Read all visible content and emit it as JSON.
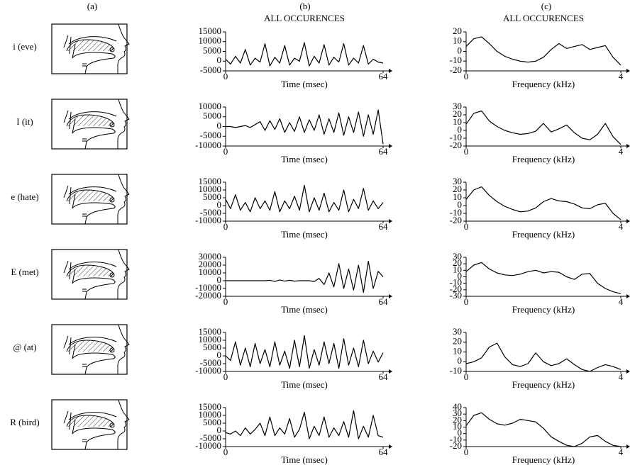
{
  "column_labels": [
    "(a)",
    "(b)",
    "(c)"
  ],
  "rows": [
    "i (eve)",
    "I (it)",
    "e (hate)",
    "E (met)",
    "@ (at)",
    "R (bird)"
  ],
  "chart_data": [
    {
      "type": "line",
      "title": "ALL OCCURENCES",
      "xlabel": "Time (msec)",
      "color": "#000000",
      "x": [
        0,
        2,
        4,
        6,
        8,
        10,
        12,
        14,
        16,
        18,
        20,
        22,
        24,
        26,
        28,
        30,
        32,
        34,
        36,
        38,
        40,
        42,
        44,
        46,
        48,
        50,
        52,
        54,
        56,
        58,
        60,
        62,
        64
      ],
      "values": [
        1000,
        -1500,
        2500,
        -1000,
        6000,
        -2000,
        1500,
        -500,
        9000,
        -2500,
        2000,
        -1000,
        8000,
        -2000,
        1500,
        0,
        9500,
        -2500,
        2500,
        -1000,
        8500,
        -2000,
        2000,
        -500,
        9000,
        -2000,
        1500,
        -1000,
        8000,
        -1500,
        1000,
        -500,
        -1000
      ],
      "xlim": [
        0,
        64
      ],
      "xticks": [
        0,
        64
      ],
      "ylim": [
        -5000,
        15000
      ],
      "yticks": [
        -5000,
        0,
        5000,
        10000,
        15000
      ]
    },
    {
      "type": "line",
      "title": "ALL OCCURENCES",
      "xlabel": "Frequency (kHz)",
      "color": "#000000",
      "x": [
        0,
        0.2,
        0.4,
        0.6,
        0.8,
        1,
        1.2,
        1.4,
        1.6,
        1.8,
        2,
        2.2,
        2.4,
        2.6,
        2.8,
        3,
        3.2,
        3.4,
        3.6,
        3.8,
        4
      ],
      "values": [
        5,
        13,
        15,
        8,
        0,
        -5,
        -8,
        -10,
        -11,
        -10,
        -6,
        2,
        8,
        3,
        5,
        7,
        2,
        4,
        6,
        -6,
        -14
      ],
      "xlim": [
        0,
        4
      ],
      "xticks": [
        0,
        4
      ],
      "ylim": [
        -20,
        20
      ],
      "yticks": [
        -20,
        -10,
        0,
        10,
        20
      ]
    },
    {
      "type": "line",
      "xlabel": "Time (msec)",
      "color": "#000000",
      "x": [
        0,
        2,
        4,
        6,
        8,
        10,
        12,
        14,
        16,
        18,
        20,
        22,
        24,
        26,
        28,
        30,
        32,
        34,
        36,
        38,
        40,
        42,
        44,
        46,
        48,
        50,
        52,
        54,
        56,
        58,
        60,
        62,
        64
      ],
      "values": [
        0,
        0,
        -500,
        0,
        500,
        -500,
        1000,
        2500,
        -2000,
        3000,
        -1500,
        4000,
        -3000,
        2000,
        -2500,
        5000,
        -3000,
        3500,
        -2000,
        6000,
        -4000,
        4000,
        -3000,
        7000,
        -4500,
        5000,
        -3000,
        7500,
        -5000,
        6000,
        -4000,
        8500,
        -9000
      ],
      "xlim": [
        0,
        64
      ],
      "xticks": [
        0,
        64
      ],
      "ylim": [
        -10000,
        10000
      ],
      "yticks": [
        -10000,
        -5000,
        0,
        5000,
        10000
      ]
    },
    {
      "type": "line",
      "xlabel": "Frequency (kHz)",
      "color": "#000000",
      "x": [
        0,
        0.2,
        0.4,
        0.6,
        0.8,
        1,
        1.2,
        1.4,
        1.6,
        1.8,
        2,
        2.2,
        2.4,
        2.6,
        2.8,
        3,
        3.2,
        3.4,
        3.6,
        3.8,
        4
      ],
      "values": [
        8,
        22,
        25,
        12,
        5,
        0,
        -3,
        -5,
        -4,
        -1,
        9,
        -2,
        2,
        7,
        -3,
        -10,
        -12,
        -5,
        9,
        -8,
        -18
      ],
      "xlim": [
        0,
        4
      ],
      "xticks": [
        0,
        4
      ],
      "ylim": [
        -20,
        30
      ],
      "yticks": [
        -20,
        -10,
        0,
        10,
        20,
        30
      ]
    },
    {
      "type": "line",
      "xlabel": "Time (msec)",
      "color": "#000000",
      "x": [
        0,
        2,
        4,
        6,
        8,
        10,
        12,
        14,
        16,
        18,
        20,
        22,
        24,
        26,
        28,
        30,
        32,
        34,
        36,
        38,
        40,
        42,
        44,
        46,
        48,
        50,
        52,
        54,
        56,
        58,
        60,
        62,
        64
      ],
      "values": [
        4000,
        -2000,
        7000,
        -3000,
        2000,
        -4000,
        5000,
        -2000,
        3000,
        -3000,
        9000,
        -4000,
        3000,
        -2000,
        6000,
        -3000,
        13000,
        -4000,
        5000,
        -3000,
        8000,
        -4000,
        2000,
        -3000,
        10000,
        -4000,
        4000,
        -2000,
        11000,
        -3000,
        3000,
        -2000,
        2000
      ],
      "xlim": [
        0,
        64
      ],
      "xticks": [
        0,
        64
      ],
      "ylim": [
        -10000,
        15000
      ],
      "yticks": [
        -10000,
        -5000,
        0,
        5000,
        10000,
        15000
      ]
    },
    {
      "type": "line",
      "xlabel": "Frequency (kHz)",
      "color": "#000000",
      "x": [
        0,
        0.2,
        0.4,
        0.6,
        0.8,
        1,
        1.2,
        1.4,
        1.6,
        1.8,
        2,
        2.2,
        2.4,
        2.6,
        2.8,
        3,
        3.2,
        3.4,
        3.6,
        3.8,
        4
      ],
      "values": [
        8,
        20,
        24,
        13,
        5,
        -1,
        -5,
        -8,
        -7,
        -3,
        5,
        9,
        6,
        5,
        2,
        -3,
        -4,
        1,
        3,
        -10,
        -18
      ],
      "xlim": [
        0,
        4
      ],
      "xticks": [
        0,
        4
      ],
      "ylim": [
        -20,
        30
      ],
      "yticks": [
        -20,
        -10,
        0,
        10,
        20,
        30
      ]
    },
    {
      "type": "line",
      "xlabel": "Time (msec)",
      "color": "#000000",
      "x": [
        0,
        2,
        4,
        6,
        8,
        10,
        12,
        14,
        16,
        18,
        20,
        22,
        24,
        26,
        28,
        30,
        32,
        34,
        36,
        38,
        40,
        42,
        44,
        46,
        48,
        50,
        52,
        54,
        56,
        58,
        60,
        62,
        64
      ],
      "values": [
        0,
        0,
        0,
        0,
        0,
        0,
        0,
        0,
        0,
        500,
        -1000,
        1000,
        -500,
        500,
        -500,
        0,
        0,
        0,
        -1000,
        3000,
        -5000,
        10000,
        -8000,
        22000,
        -10000,
        15000,
        -12000,
        20000,
        -15000,
        25000,
        -10000,
        12000,
        5000
      ],
      "xlim": [
        0,
        64
      ],
      "xticks": [
        0,
        64
      ],
      "ylim": [
        -20000,
        30000
      ],
      "yticks": [
        -20000,
        -10000,
        0,
        10000,
        20000,
        30000
      ]
    },
    {
      "type": "line",
      "xlabel": "Frequency (kHz)",
      "color": "#000000",
      "x": [
        0,
        0.2,
        0.4,
        0.6,
        0.8,
        1,
        1.2,
        1.4,
        1.6,
        1.8,
        2,
        2.2,
        2.4,
        2.6,
        2.8,
        3,
        3.2,
        3.4,
        3.6,
        3.8,
        4
      ],
      "values": [
        8,
        18,
        22,
        12,
        6,
        3,
        2,
        4,
        8,
        10,
        6,
        8,
        7,
        0,
        -4,
        4,
        5,
        -10,
        -18,
        -23,
        -26
      ],
      "xlim": [
        0,
        4
      ],
      "xticks": [
        0,
        4
      ],
      "ylim": [
        -30,
        30
      ],
      "yticks": [
        -30,
        -20,
        -10,
        0,
        10,
        20,
        30
      ]
    },
    {
      "type": "line",
      "xlabel": "Time (msec)",
      "color": "#000000",
      "x": [
        0,
        2,
        4,
        6,
        8,
        10,
        12,
        14,
        16,
        18,
        20,
        22,
        24,
        26,
        28,
        30,
        32,
        34,
        36,
        38,
        40,
        42,
        44,
        46,
        48,
        50,
        52,
        54,
        56,
        58,
        60,
        62,
        64
      ],
      "values": [
        0,
        -3000,
        9000,
        -6000,
        5000,
        -7000,
        8000,
        -5000,
        4000,
        -7000,
        9000,
        -6000,
        3000,
        -8000,
        10000,
        -7000,
        13000,
        -8000,
        4000,
        -6000,
        9000,
        -5000,
        8000,
        -8000,
        11000,
        -6000,
        5000,
        -7000,
        10000,
        -5000,
        3000,
        -4000,
        2000
      ],
      "xlim": [
        0,
        64
      ],
      "xticks": [
        0,
        64
      ],
      "ylim": [
        -10000,
        15000
      ],
      "yticks": [
        -10000,
        -5000,
        0,
        5000,
        10000,
        15000
      ]
    },
    {
      "type": "line",
      "xlabel": "Frequency (kHz)",
      "color": "#000000",
      "x": [
        0,
        0.2,
        0.4,
        0.6,
        0.8,
        1,
        1.2,
        1.4,
        1.6,
        1.8,
        2,
        2.2,
        2.4,
        2.6,
        2.8,
        3,
        3.2,
        3.4,
        3.6,
        3.8,
        4
      ],
      "values": [
        -2,
        0,
        4,
        15,
        19,
        5,
        -3,
        -5,
        -2,
        9,
        0,
        -4,
        -2,
        3,
        -3,
        -8,
        -10,
        -6,
        -3,
        -5,
        -8
      ],
      "xlim": [
        0,
        4
      ],
      "xticks": [
        0,
        4
      ],
      "ylim": [
        -10,
        30
      ],
      "yticks": [
        -10,
        0,
        10,
        20,
        30
      ]
    },
    {
      "type": "line",
      "xlabel": "Time (msec)",
      "color": "#000000",
      "x": [
        0,
        2,
        4,
        6,
        8,
        10,
        12,
        14,
        16,
        18,
        20,
        22,
        24,
        26,
        28,
        30,
        32,
        34,
        36,
        38,
        40,
        42,
        44,
        46,
        48,
        50,
        52,
        54,
        56,
        58,
        60,
        62,
        64
      ],
      "values": [
        -1000,
        -2000,
        0,
        -3000,
        2000,
        -2000,
        1000,
        5000,
        -3000,
        9000,
        -3000,
        2000,
        -2000,
        8000,
        -4000,
        1000,
        12000,
        -5000,
        3000,
        -3000,
        9000,
        -4000,
        2000,
        -3000,
        6000,
        -4000,
        13000,
        -5000,
        3000,
        -4000,
        10000,
        -3000,
        -4000
      ],
      "xlim": [
        0,
        64
      ],
      "xticks": [
        0,
        64
      ],
      "ylim": [
        -10000,
        15000
      ],
      "yticks": [
        -10000,
        -5000,
        0,
        5000,
        10000,
        15000
      ]
    },
    {
      "type": "line",
      "xlabel": "Frequency (kHz)",
      "color": "#000000",
      "x": [
        0,
        0.2,
        0.4,
        0.6,
        0.8,
        1,
        1.2,
        1.4,
        1.6,
        1.8,
        2,
        2.2,
        2.4,
        2.6,
        2.8,
        3,
        3.2,
        3.4,
        3.6,
        3.8,
        4
      ],
      "values": [
        12,
        28,
        32,
        22,
        15,
        13,
        16,
        22,
        20,
        18,
        8,
        -5,
        -12,
        -18,
        -20,
        -15,
        -5,
        -3,
        -12,
        -18,
        -20
      ],
      "xlim": [
        0,
        4
      ],
      "xticks": [
        0,
        4
      ],
      "ylim": [
        -20,
        40
      ],
      "yticks": [
        -20,
        -10,
        0,
        10,
        20,
        30,
        40
      ]
    }
  ]
}
